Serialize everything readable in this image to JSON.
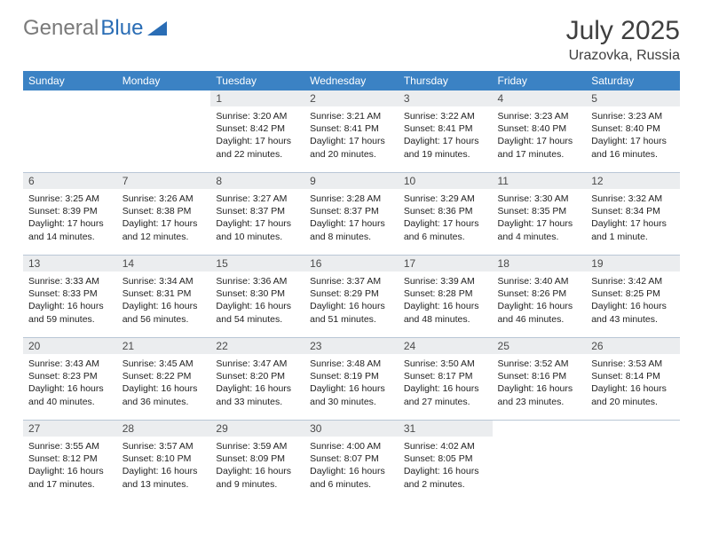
{
  "brand": {
    "part1": "General",
    "part2": "Blue"
  },
  "title": "July 2025",
  "location": "Urazovka, Russia",
  "colors": {
    "header_bg": "#3b82c4",
    "header_text": "#ffffff",
    "daynum_bg": "#ebedef",
    "border": "#b9c7d6",
    "brand_gray": "#7a7a7a",
    "brand_blue": "#2a6db5"
  },
  "weekdays": [
    "Sunday",
    "Monday",
    "Tuesday",
    "Wednesday",
    "Thursday",
    "Friday",
    "Saturday"
  ],
  "first_weekday_index": 2,
  "days": [
    {
      "n": "1",
      "sunrise": "Sunrise: 3:20 AM",
      "sunset": "Sunset: 8:42 PM",
      "daylight": "Daylight: 17 hours and 22 minutes."
    },
    {
      "n": "2",
      "sunrise": "Sunrise: 3:21 AM",
      "sunset": "Sunset: 8:41 PM",
      "daylight": "Daylight: 17 hours and 20 minutes."
    },
    {
      "n": "3",
      "sunrise": "Sunrise: 3:22 AM",
      "sunset": "Sunset: 8:41 PM",
      "daylight": "Daylight: 17 hours and 19 minutes."
    },
    {
      "n": "4",
      "sunrise": "Sunrise: 3:23 AM",
      "sunset": "Sunset: 8:40 PM",
      "daylight": "Daylight: 17 hours and 17 minutes."
    },
    {
      "n": "5",
      "sunrise": "Sunrise: 3:23 AM",
      "sunset": "Sunset: 8:40 PM",
      "daylight": "Daylight: 17 hours and 16 minutes."
    },
    {
      "n": "6",
      "sunrise": "Sunrise: 3:25 AM",
      "sunset": "Sunset: 8:39 PM",
      "daylight": "Daylight: 17 hours and 14 minutes."
    },
    {
      "n": "7",
      "sunrise": "Sunrise: 3:26 AM",
      "sunset": "Sunset: 8:38 PM",
      "daylight": "Daylight: 17 hours and 12 minutes."
    },
    {
      "n": "8",
      "sunrise": "Sunrise: 3:27 AM",
      "sunset": "Sunset: 8:37 PM",
      "daylight": "Daylight: 17 hours and 10 minutes."
    },
    {
      "n": "9",
      "sunrise": "Sunrise: 3:28 AM",
      "sunset": "Sunset: 8:37 PM",
      "daylight": "Daylight: 17 hours and 8 minutes."
    },
    {
      "n": "10",
      "sunrise": "Sunrise: 3:29 AM",
      "sunset": "Sunset: 8:36 PM",
      "daylight": "Daylight: 17 hours and 6 minutes."
    },
    {
      "n": "11",
      "sunrise": "Sunrise: 3:30 AM",
      "sunset": "Sunset: 8:35 PM",
      "daylight": "Daylight: 17 hours and 4 minutes."
    },
    {
      "n": "12",
      "sunrise": "Sunrise: 3:32 AM",
      "sunset": "Sunset: 8:34 PM",
      "daylight": "Daylight: 17 hours and 1 minute."
    },
    {
      "n": "13",
      "sunrise": "Sunrise: 3:33 AM",
      "sunset": "Sunset: 8:33 PM",
      "daylight": "Daylight: 16 hours and 59 minutes."
    },
    {
      "n": "14",
      "sunrise": "Sunrise: 3:34 AM",
      "sunset": "Sunset: 8:31 PM",
      "daylight": "Daylight: 16 hours and 56 minutes."
    },
    {
      "n": "15",
      "sunrise": "Sunrise: 3:36 AM",
      "sunset": "Sunset: 8:30 PM",
      "daylight": "Daylight: 16 hours and 54 minutes."
    },
    {
      "n": "16",
      "sunrise": "Sunrise: 3:37 AM",
      "sunset": "Sunset: 8:29 PM",
      "daylight": "Daylight: 16 hours and 51 minutes."
    },
    {
      "n": "17",
      "sunrise": "Sunrise: 3:39 AM",
      "sunset": "Sunset: 8:28 PM",
      "daylight": "Daylight: 16 hours and 48 minutes."
    },
    {
      "n": "18",
      "sunrise": "Sunrise: 3:40 AM",
      "sunset": "Sunset: 8:26 PM",
      "daylight": "Daylight: 16 hours and 46 minutes."
    },
    {
      "n": "19",
      "sunrise": "Sunrise: 3:42 AM",
      "sunset": "Sunset: 8:25 PM",
      "daylight": "Daylight: 16 hours and 43 minutes."
    },
    {
      "n": "20",
      "sunrise": "Sunrise: 3:43 AM",
      "sunset": "Sunset: 8:23 PM",
      "daylight": "Daylight: 16 hours and 40 minutes."
    },
    {
      "n": "21",
      "sunrise": "Sunrise: 3:45 AM",
      "sunset": "Sunset: 8:22 PM",
      "daylight": "Daylight: 16 hours and 36 minutes."
    },
    {
      "n": "22",
      "sunrise": "Sunrise: 3:47 AM",
      "sunset": "Sunset: 8:20 PM",
      "daylight": "Daylight: 16 hours and 33 minutes."
    },
    {
      "n": "23",
      "sunrise": "Sunrise: 3:48 AM",
      "sunset": "Sunset: 8:19 PM",
      "daylight": "Daylight: 16 hours and 30 minutes."
    },
    {
      "n": "24",
      "sunrise": "Sunrise: 3:50 AM",
      "sunset": "Sunset: 8:17 PM",
      "daylight": "Daylight: 16 hours and 27 minutes."
    },
    {
      "n": "25",
      "sunrise": "Sunrise: 3:52 AM",
      "sunset": "Sunset: 8:16 PM",
      "daylight": "Daylight: 16 hours and 23 minutes."
    },
    {
      "n": "26",
      "sunrise": "Sunrise: 3:53 AM",
      "sunset": "Sunset: 8:14 PM",
      "daylight": "Daylight: 16 hours and 20 minutes."
    },
    {
      "n": "27",
      "sunrise": "Sunrise: 3:55 AM",
      "sunset": "Sunset: 8:12 PM",
      "daylight": "Daylight: 16 hours and 17 minutes."
    },
    {
      "n": "28",
      "sunrise": "Sunrise: 3:57 AM",
      "sunset": "Sunset: 8:10 PM",
      "daylight": "Daylight: 16 hours and 13 minutes."
    },
    {
      "n": "29",
      "sunrise": "Sunrise: 3:59 AM",
      "sunset": "Sunset: 8:09 PM",
      "daylight": "Daylight: 16 hours and 9 minutes."
    },
    {
      "n": "30",
      "sunrise": "Sunrise: 4:00 AM",
      "sunset": "Sunset: 8:07 PM",
      "daylight": "Daylight: 16 hours and 6 minutes."
    },
    {
      "n": "31",
      "sunrise": "Sunrise: 4:02 AM",
      "sunset": "Sunset: 8:05 PM",
      "daylight": "Daylight: 16 hours and 2 minutes."
    }
  ]
}
